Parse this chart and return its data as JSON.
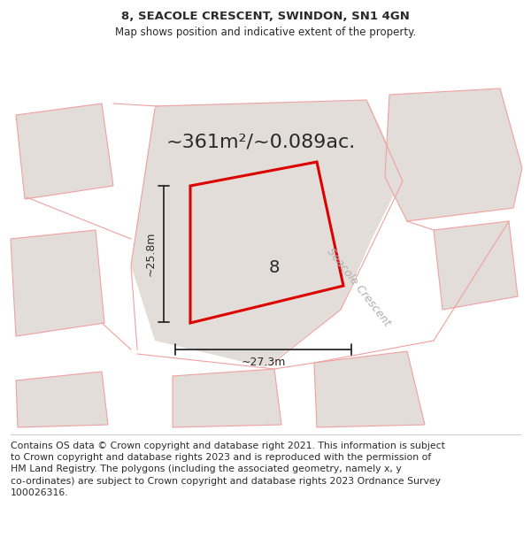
{
  "title": "8, SEACOLE CRESCENT, SWINDON, SN1 4GN",
  "subtitle": "Map shows position and indicative extent of the property.",
  "area_label": "~361m²/~0.089ac.",
  "number_label": "8",
  "dim_width": "~27.3m",
  "dim_height": "~25.8m",
  "street_label": "Seacole Crescent",
  "footer": "Contains OS data © Crown copyright and database right 2021. This information is subject\nto Crown copyright and database rights 2023 and is reproduced with the permission of\nHM Land Registry. The polygons (including the associated geometry, namely x, y\nco-ordinates) are subject to Crown copyright and database rights 2023 Ordnance Survey\n100026316.",
  "bg_color": "#ffffff",
  "map_bg": "#eeece8",
  "parcel_fill": "#e2ddd8",
  "red_color": "#dd0000",
  "pink_color": "#f0a0a0",
  "dark_color": "#2a2a2a",
  "gray_text": "#b0b0b0",
  "footer_size": 7.8,
  "title_size": 9.5,
  "subtitle_size": 8.5,
  "area_label_size": 16,
  "number_size": 14,
  "dim_size": 9,
  "street_size": 9
}
